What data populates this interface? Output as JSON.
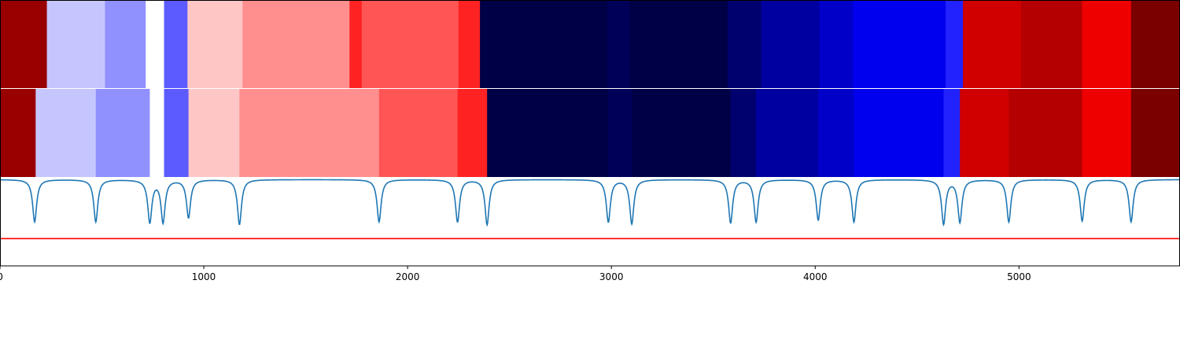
{
  "chart_data": [
    {
      "type": "heatmap",
      "panel": "top-strip",
      "segments": [
        {
          "x0": 0,
          "x1": 230,
          "color": "#990000"
        },
        {
          "x0": 230,
          "x1": 515,
          "color": "#c6c6ff"
        },
        {
          "x0": 515,
          "x1": 715,
          "color": "#9090ff"
        },
        {
          "x0": 715,
          "x1": 805,
          "color": "#ffffff"
        },
        {
          "x0": 805,
          "x1": 920,
          "color": "#5b5bff"
        },
        {
          "x0": 920,
          "x1": 1190,
          "color": "#ffc6c6"
        },
        {
          "x0": 1190,
          "x1": 1715,
          "color": "#ff8e8e"
        },
        {
          "x0": 1715,
          "x1": 1775,
          "color": "#ff2222"
        },
        {
          "x0": 1775,
          "x1": 2250,
          "color": "#ff5555"
        },
        {
          "x0": 2250,
          "x1": 2355,
          "color": "#ff2222"
        },
        {
          "x0": 2355,
          "x1": 2980,
          "color": "#000046"
        },
        {
          "x0": 2980,
          "x1": 3090,
          "color": "#000058"
        },
        {
          "x0": 3090,
          "x1": 3570,
          "color": "#000046"
        },
        {
          "x0": 3570,
          "x1": 3735,
          "color": "#00006e"
        },
        {
          "x0": 3735,
          "x1": 4020,
          "color": "#0000a0"
        },
        {
          "x0": 4020,
          "x1": 4185,
          "color": "#0000c8"
        },
        {
          "x0": 4185,
          "x1": 4640,
          "color": "#0000ee"
        },
        {
          "x0": 4640,
          "x1": 4725,
          "color": "#2222ff"
        },
        {
          "x0": 4725,
          "x1": 5010,
          "color": "#d00000"
        },
        {
          "x0": 5010,
          "x1": 5310,
          "color": "#b40000"
        },
        {
          "x0": 5310,
          "x1": 5550,
          "color": "#ee0000"
        },
        {
          "x0": 5550,
          "x1": 5790,
          "color": "#7a0000"
        }
      ]
    },
    {
      "type": "heatmap",
      "panel": "middle-strip",
      "segments": [
        {
          "x0": 0,
          "x1": 175,
          "color": "#990000"
        },
        {
          "x0": 175,
          "x1": 470,
          "color": "#c6c6ff"
        },
        {
          "x0": 470,
          "x1": 735,
          "color": "#9090ff"
        },
        {
          "x0": 735,
          "x1": 805,
          "color": "#ffffff"
        },
        {
          "x0": 805,
          "x1": 925,
          "color": "#5b5bff"
        },
        {
          "x0": 925,
          "x1": 1175,
          "color": "#ffc6c6"
        },
        {
          "x0": 1175,
          "x1": 1860,
          "color": "#ff8e8e"
        },
        {
          "x0": 1860,
          "x1": 2245,
          "color": "#ff5555"
        },
        {
          "x0": 2245,
          "x1": 2390,
          "color": "#ff2222"
        },
        {
          "x0": 2390,
          "x1": 2985,
          "color": "#000046"
        },
        {
          "x0": 2985,
          "x1": 3100,
          "color": "#000058"
        },
        {
          "x0": 3100,
          "x1": 3585,
          "color": "#000046"
        },
        {
          "x0": 3585,
          "x1": 3710,
          "color": "#00006e"
        },
        {
          "x0": 3710,
          "x1": 4015,
          "color": "#0000a0"
        },
        {
          "x0": 4015,
          "x1": 4190,
          "color": "#0000c8"
        },
        {
          "x0": 4190,
          "x1": 4630,
          "color": "#0000ee"
        },
        {
          "x0": 4630,
          "x1": 4710,
          "color": "#2222ff"
        },
        {
          "x0": 4710,
          "x1": 4950,
          "color": "#d00000"
        },
        {
          "x0": 4950,
          "x1": 5310,
          "color": "#b40000"
        },
        {
          "x0": 5310,
          "x1": 5550,
          "color": "#ee0000"
        },
        {
          "x0": 5550,
          "x1": 5790,
          "color": "#7a0000"
        }
      ]
    },
    {
      "type": "line",
      "panel": "bottom-line",
      "xlim": [
        0,
        5790
      ],
      "ylim": [
        0,
        1
      ],
      "xticks": [
        0,
        1000,
        2000,
        3000,
        4000,
        5000
      ],
      "xtick_labels": [
        "0",
        "1000",
        "2000",
        "3000",
        "4000",
        "5000"
      ],
      "baseline": 0.98,
      "dips": [
        {
          "x": 170,
          "y": 0.5
        },
        {
          "x": 470,
          "y": 0.5
        },
        {
          "x": 735,
          "y": 0.5
        },
        {
          "x": 800,
          "y": 0.5
        },
        {
          "x": 925,
          "y": 0.55
        },
        {
          "x": 1175,
          "y": 0.47
        },
        {
          "x": 1860,
          "y": 0.5
        },
        {
          "x": 2245,
          "y": 0.5
        },
        {
          "x": 2390,
          "y": 0.47
        },
        {
          "x": 2985,
          "y": 0.5
        },
        {
          "x": 3100,
          "y": 0.48
        },
        {
          "x": 3585,
          "y": 0.49
        },
        {
          "x": 3710,
          "y": 0.5
        },
        {
          "x": 4015,
          "y": 0.52
        },
        {
          "x": 4190,
          "y": 0.5
        },
        {
          "x": 4630,
          "y": 0.48
        },
        {
          "x": 4710,
          "y": 0.5
        },
        {
          "x": 4950,
          "y": 0.5
        },
        {
          "x": 5310,
          "y": 0.51
        },
        {
          "x": 5550,
          "y": 0.5
        }
      ],
      "series_color": "#1f77b4",
      "hline": {
        "y": 0.31,
        "color": "#ff0000"
      },
      "grid": false
    }
  ]
}
